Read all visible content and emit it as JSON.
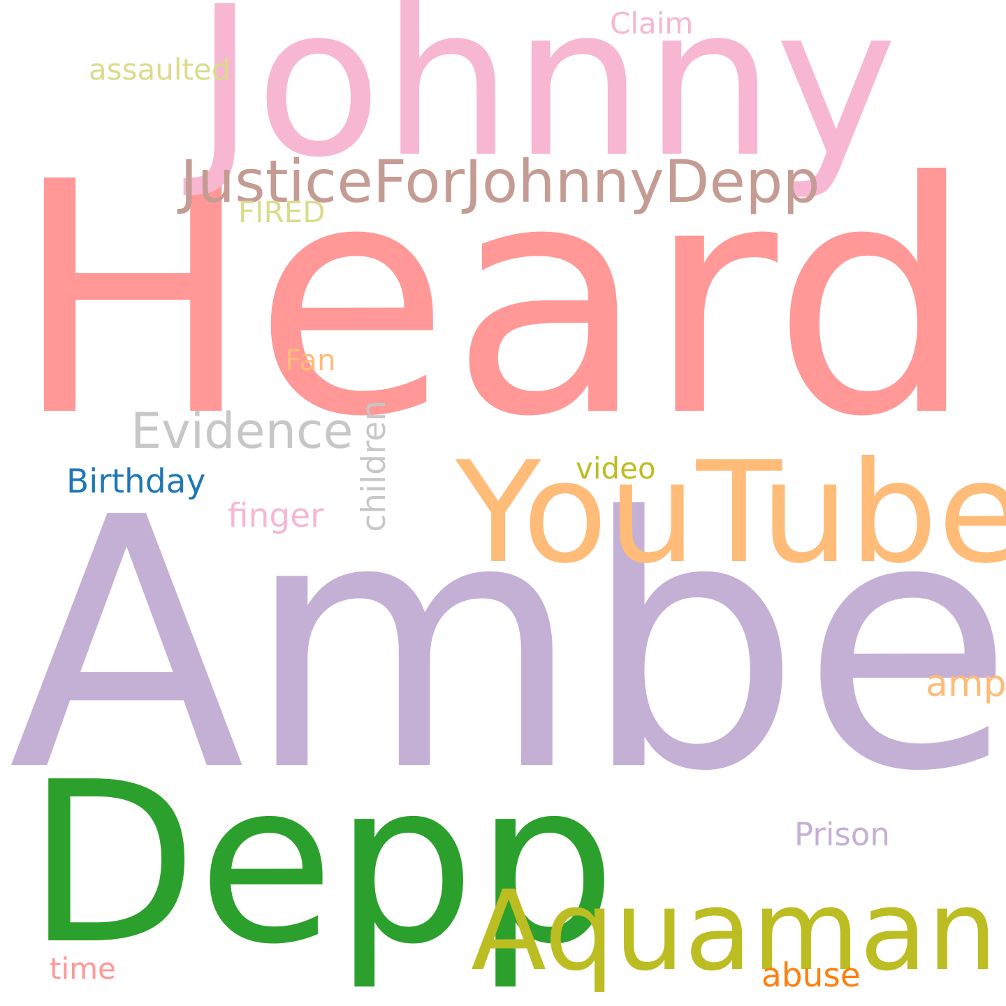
{
  "words": {
    "heard": {
      "text": "Heard",
      "color": "#ff9896"
    },
    "amber": {
      "text": "Amber",
      "color": "#c5b0d5"
    },
    "johnny": {
      "text": "Johnny",
      "color": "#f7b6d2"
    },
    "depp": {
      "text": "Depp",
      "color": "#2ca02c"
    },
    "youtube": {
      "text": "YouTube",
      "color": "#ffbb78"
    },
    "aquaman": {
      "text": "Aquaman",
      "color": "#bcbd22"
    },
    "justice": {
      "text": "JusticeForJohnnyDepp",
      "color": "#c49c94"
    },
    "evidence": {
      "text": "Evidence",
      "color": "#c7c7c7"
    },
    "birthday": {
      "text": "Birthday",
      "color": "#1f77b4"
    },
    "finger": {
      "text": "finger",
      "color": "#f7b6d2"
    },
    "children": {
      "text": "children",
      "color": "#c7c7c7"
    },
    "video": {
      "text": "video",
      "color": "#bcbd22"
    },
    "amp": {
      "text": "amp",
      "color": "#ffbb78"
    },
    "prison": {
      "text": "Prison",
      "color": "#c5b0d5"
    },
    "abuse": {
      "text": "abuse",
      "color": "#ff7f0e"
    },
    "time": {
      "text": "time",
      "color": "#ff9896"
    },
    "assaulted": {
      "text": "assaulted",
      "color": "#dbdb8d"
    },
    "claim": {
      "text": "Claim",
      "color": "#f7b6d2"
    },
    "fired": {
      "text": "FIRED",
      "color": "#dbdb8d"
    },
    "fan": {
      "text": "Fan",
      "color": "#ffbb78"
    }
  }
}
